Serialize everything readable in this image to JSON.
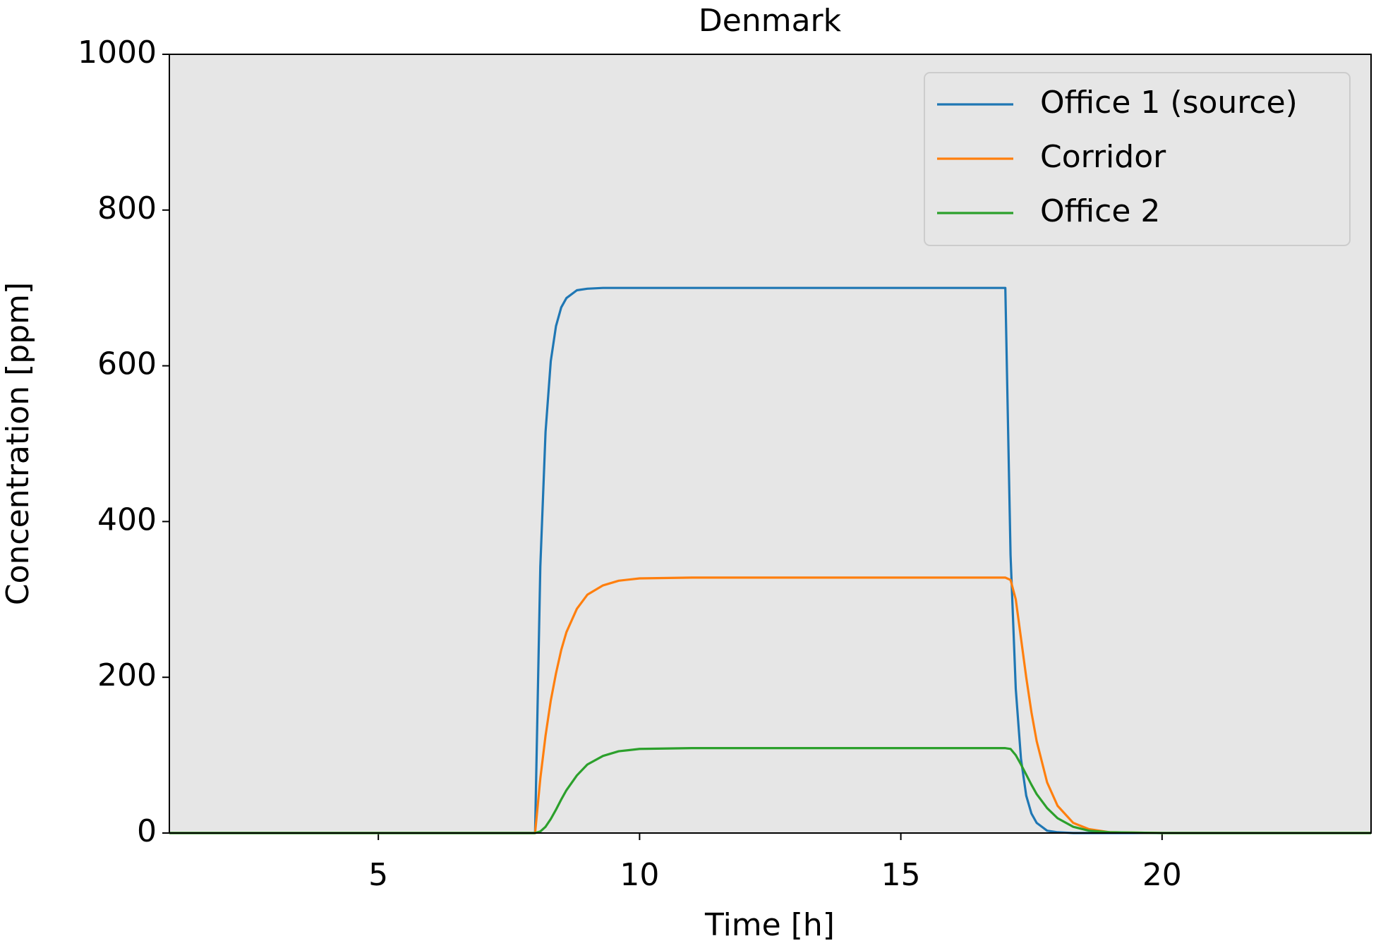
{
  "chart_data": {
    "type": "line",
    "title": "Denmark",
    "x_label": "Time [h]",
    "y_label": "Concentration [ppm]",
    "x": [
      1,
      8,
      8.1,
      8.2,
      8.3,
      8.4,
      8.5,
      8.6,
      8.8,
      9,
      9.3,
      9.6,
      10,
      11,
      12,
      13,
      14,
      15,
      16,
      17,
      17.1,
      17.2,
      17.3,
      17.4,
      17.5,
      17.6,
      17.8,
      18,
      18.3,
      18.6,
      19,
      20,
      24
    ],
    "series": [
      {
        "name": "Office 1 (source)",
        "color": "#1f77b4",
        "values": [
          0,
          0,
          342,
          515,
          606,
          651,
          675,
          687,
          697,
          699,
          700,
          700,
          700,
          700,
          700,
          700,
          700,
          700,
          700,
          700,
          357,
          185,
          95,
          48,
          25,
          13,
          3,
          1,
          0,
          0,
          0,
          0,
          0
        ]
      },
      {
        "name": "Corridor",
        "color": "#ff7f0e",
        "values": [
          0,
          0,
          70,
          125,
          170,
          205,
          235,
          258,
          288,
          306,
          318,
          324,
          327,
          328,
          328,
          328,
          328,
          328,
          328,
          328,
          325,
          300,
          250,
          200,
          155,
          118,
          65,
          35,
          13,
          5,
          1,
          0,
          0
        ]
      },
      {
        "name": "Office 2",
        "color": "#2ca02c",
        "values": [
          0,
          0,
          2,
          8,
          18,
          30,
          43,
          55,
          74,
          88,
          99,
          105,
          108,
          109,
          109,
          109,
          109,
          109,
          109,
          109,
          108,
          100,
          88,
          75,
          62,
          50,
          32,
          19,
          8,
          3,
          1,
          0,
          0
        ]
      }
    ],
    "xlim": [
      1,
      24
    ],
    "xticks": [
      5,
      10,
      15,
      20
    ],
    "ylim": [
      0,
      1000
    ],
    "yticks": [
      0,
      200,
      400,
      600,
      800,
      1000
    ],
    "legend": "upper right",
    "background": "#e6e6e6"
  }
}
